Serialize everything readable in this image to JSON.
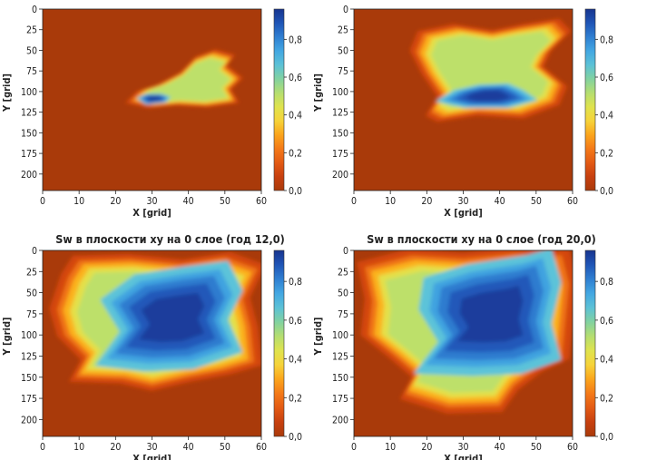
{
  "colors": {
    "background": "#a93a0a",
    "colormap": [
      "#a93a0a",
      "#c7400f",
      "#e35a14",
      "#f47a18",
      "#fba51c",
      "#f6d33a",
      "#dfe34e",
      "#b5de70",
      "#82d2a0",
      "#5cc1d6",
      "#43a7e2",
      "#2f7fd1",
      "#1f55b6",
      "#17348f"
    ]
  },
  "chart_data": [
    {
      "type": "heatmap",
      "title": "",
      "xlabel": "X [grid]",
      "ylabel": "Y [grid]",
      "xlim": [
        0,
        60
      ],
      "ylim": [
        0,
        220
      ],
      "y_inverted": true,
      "xticks": [
        "0",
        "10",
        "20",
        "30",
        "40",
        "50",
        "60"
      ],
      "yticks": [
        "0",
        "25",
        "50",
        "75",
        "100",
        "125",
        "150",
        "175",
        "200"
      ],
      "colorbar": {
        "ticks": [
          "0,0",
          "0,2",
          "0,4",
          "0,6",
          "0,8"
        ],
        "range": [
          0,
          0.96
        ]
      },
      "plume": {
        "outer": [
          [
            24,
            112
          ],
          [
            27,
            99
          ],
          [
            32,
            92
          ],
          [
            38,
            78
          ],
          [
            42,
            60
          ],
          [
            47,
            52
          ],
          [
            52,
            58
          ],
          [
            50,
            70
          ],
          [
            54,
            84
          ],
          [
            51,
            97
          ],
          [
            53,
            112
          ],
          [
            45,
            117
          ],
          [
            37,
            115
          ],
          [
            30,
            118
          ]
        ],
        "core": [
          [
            27,
            108
          ],
          [
            29,
            104
          ],
          [
            32,
            104
          ],
          [
            34,
            107
          ],
          [
            33,
            112
          ],
          [
            29,
            114
          ]
        ]
      }
    },
    {
      "type": "heatmap",
      "title": "",
      "xlabel": "X [grid]",
      "ylabel": "Y [grid]",
      "xlim": [
        0,
        60
      ],
      "ylim": [
        0,
        220
      ],
      "y_inverted": true,
      "xticks": [
        "0",
        "10",
        "20",
        "30",
        "40",
        "50",
        "60"
      ],
      "yticks": [
        "0",
        "25",
        "50",
        "75",
        "100",
        "125",
        "150",
        "175",
        "200"
      ],
      "colorbar": {
        "ticks": [
          "0,0",
          "0,2",
          "0,4",
          "0,6",
          "0,8"
        ],
        "range": [
          0,
          0.96
        ]
      },
      "plume": {
        "outer": [
          [
            21,
            125
          ],
          [
            24,
            104
          ],
          [
            20,
            78
          ],
          [
            17,
            52
          ],
          [
            19,
            30
          ],
          [
            28,
            22
          ],
          [
            38,
            29
          ],
          [
            46,
            22
          ],
          [
            55,
            16
          ],
          [
            58,
            30
          ],
          [
            53,
            52
          ],
          [
            51,
            70
          ],
          [
            57,
            92
          ],
          [
            55,
            113
          ],
          [
            46,
            128
          ],
          [
            34,
            125
          ],
          [
            24,
            132
          ]
        ],
        "core": [
          [
            26,
            110
          ],
          [
            30,
            100
          ],
          [
            35,
            95
          ],
          [
            41,
            94
          ],
          [
            44,
            100
          ],
          [
            47,
            109
          ],
          [
            41,
            116
          ],
          [
            32,
            116
          ]
        ]
      }
    },
    {
      "type": "heatmap",
      "title": "Sw в плоскости xy на 0 слое (год 12,0)",
      "xlabel": "X [grid]",
      "ylabel": "Y [grid]",
      "xlim": [
        0,
        60
      ],
      "ylim": [
        0,
        220
      ],
      "y_inverted": true,
      "xticks": [
        "0",
        "10",
        "20",
        "30",
        "40",
        "50",
        "60"
      ],
      "yticks": [
        "0",
        "25",
        "50",
        "75",
        "100",
        "125",
        "150",
        "175",
        "200"
      ],
      "colorbar": {
        "ticks": [
          "0,0",
          "0,2",
          "0,4",
          "0,6",
          "0,8"
        ],
        "range": [
          0,
          0.96
        ]
      },
      "plume": {
        "outer": [
          [
            9,
            150
          ],
          [
            12,
            126
          ],
          [
            6,
            100
          ],
          [
            4,
            70
          ],
          [
            7,
            32
          ],
          [
            10,
            12
          ],
          [
            24,
            10
          ],
          [
            38,
            16
          ],
          [
            50,
            8
          ],
          [
            59,
            22
          ],
          [
            55,
            58
          ],
          [
            57,
            90
          ],
          [
            58,
            132
          ],
          [
            50,
            142
          ],
          [
            40,
            150
          ],
          [
            30,
            160
          ],
          [
            22,
            152
          ]
        ],
        "core": [
          [
            20,
            122
          ],
          [
            25,
            92
          ],
          [
            21,
            64
          ],
          [
            28,
            42
          ],
          [
            38,
            35
          ],
          [
            47,
            30
          ],
          [
            50,
            56
          ],
          [
            47,
            82
          ],
          [
            50,
            110
          ],
          [
            40,
            125
          ],
          [
            30,
            127
          ]
        ]
      }
    },
    {
      "type": "heatmap",
      "title": "Sw в плоскости xy на 0 слое (год 20,0)",
      "xlabel": "X [grid]",
      "ylabel": "Y [grid]",
      "xlim": [
        0,
        60
      ],
      "ylim": [
        0,
        220
      ],
      "y_inverted": true,
      "xticks": [
        "0",
        "10",
        "20",
        "30",
        "40",
        "50",
        "60"
      ],
      "yticks": [
        "0",
        "25",
        "50",
        "75",
        "100",
        "125",
        "150",
        "175",
        "200"
      ],
      "colorbar": {
        "ticks": [
          "0,0",
          "0,2",
          "0,4",
          "0,6",
          "0,8"
        ],
        "range": [
          0,
          0.96
        ]
      },
      "plume": {
        "outer": [
          [
            14,
            170
          ],
          [
            17,
            146
          ],
          [
            11,
            124
          ],
          [
            4,
            100
          ],
          [
            5,
            60
          ],
          [
            3,
            20
          ],
          [
            16,
            6
          ],
          [
            30,
            10
          ],
          [
            44,
            4
          ],
          [
            57,
            6
          ],
          [
            59,
            40
          ],
          [
            58,
            82
          ],
          [
            57,
            126
          ],
          [
            50,
            140
          ],
          [
            44,
            160
          ],
          [
            40,
            184
          ],
          [
            26,
            186
          ],
          [
            20,
            178
          ]
        ],
        "core": [
          [
            22,
            128
          ],
          [
            27,
            100
          ],
          [
            23,
            72
          ],
          [
            24,
            44
          ],
          [
            33,
            32
          ],
          [
            45,
            24
          ],
          [
            50,
            18
          ],
          [
            52,
            48
          ],
          [
            50,
            84
          ],
          [
            52,
            116
          ],
          [
            44,
            128
          ],
          [
            34,
            130
          ]
        ]
      }
    }
  ]
}
